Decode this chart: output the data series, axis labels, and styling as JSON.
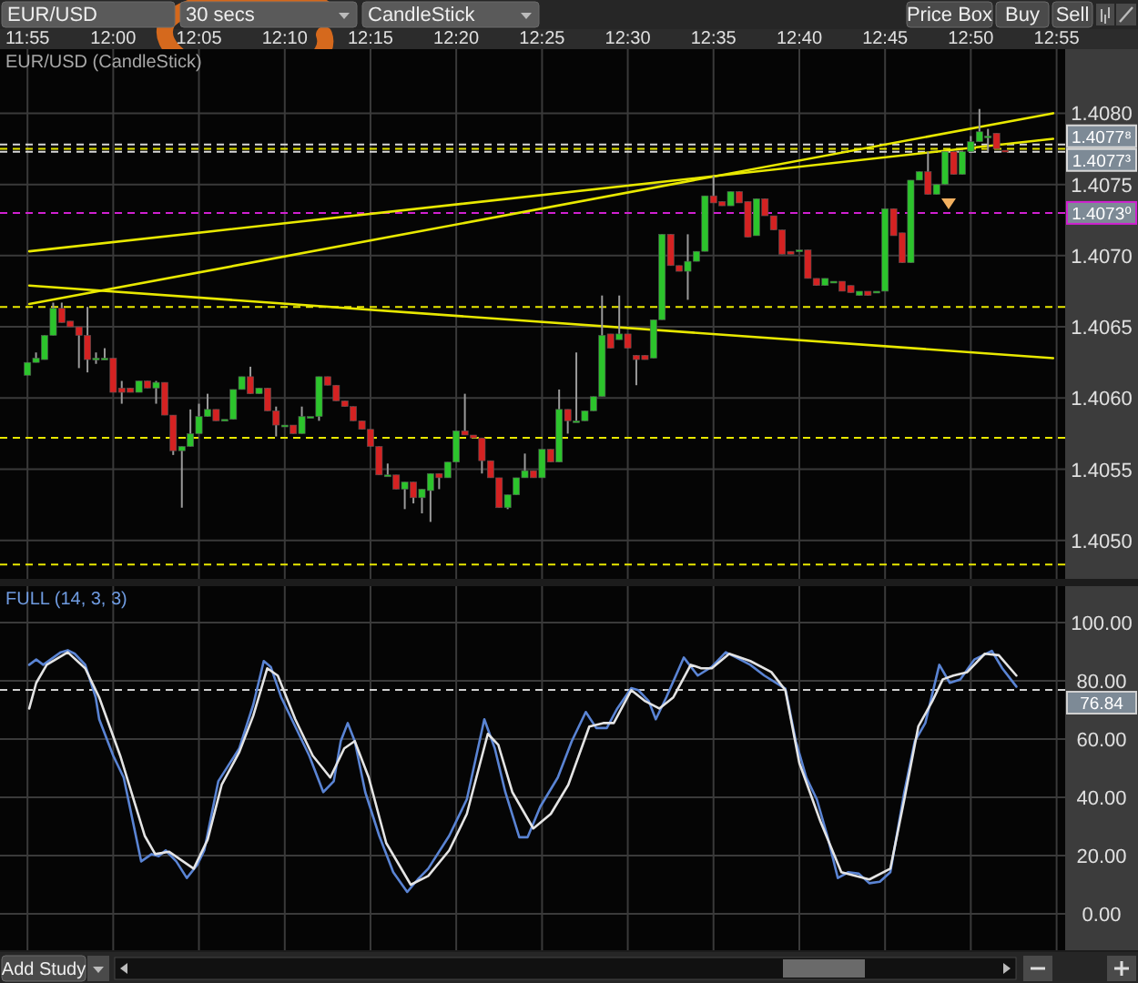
{
  "chart_data": [
    {
      "type": "candlestick",
      "title": "EUR/USD (CandleStick)",
      "x": [
        11.9167,
        11.925,
        11.9333,
        11.9417,
        11.95,
        11.9583,
        11.9667,
        11.975,
        11.9833,
        11.9917,
        12,
        12.0083,
        12.0167,
        12.025,
        12.0333,
        12.0417,
        12.05,
        12.0583,
        12.0667,
        12.075,
        12.0833,
        12.0917,
        12.1,
        12.1083,
        12.1167,
        12.125,
        12.1333,
        12.1417,
        12.15,
        12.1583,
        12.1667,
        12.175,
        12.1833,
        12.1917,
        12.2,
        12.2083,
        12.2167,
        12.225,
        12.2333,
        12.2417,
        12.25,
        12.2583,
        12.2667,
        12.275,
        12.2833,
        12.2917,
        12.3,
        12.3083,
        12.3167,
        12.325,
        12.3333,
        12.3417,
        12.35,
        12.3583,
        12.3667,
        12.375,
        12.3833,
        12.3917,
        12.4,
        12.4083,
        12.4167,
        12.425,
        12.4333,
        12.4417,
        12.45,
        12.4583,
        12.4667,
        12.475,
        12.4833,
        12.4917,
        12.5,
        12.5083,
        12.5167,
        12.525,
        12.5333,
        12.5417,
        12.55,
        12.5583,
        12.5667,
        12.575,
        12.5833,
        12.5917,
        12.6,
        12.6083,
        12.6167,
        12.625,
        12.6333,
        12.6417,
        12.65,
        12.6583,
        12.6667,
        12.675,
        12.6833,
        12.6917,
        12.7,
        12.7083,
        12.7167,
        12.725,
        12.7333,
        12.7417,
        12.75,
        12.7583,
        12.7667,
        12.775,
        12.7833,
        12.7917,
        12.8,
        12.8083,
        12.8167,
        12.825,
        12.8333,
        12.8417,
        12.85,
        12.8583,
        12.8667
      ],
      "ohlc": [
        [
          1.40616,
          1.40625,
          1.40616,
          1.40625
        ],
        [
          1.40625,
          1.40632,
          1.40625,
          1.40628
        ],
        [
          1.40627,
          1.40644,
          1.40627,
          1.40644
        ],
        [
          1.40644,
          1.40667,
          1.40644,
          1.40663
        ],
        [
          1.40663,
          1.40667,
          1.40653,
          1.40653
        ],
        [
          1.40654,
          1.40654,
          1.4065,
          1.4065
        ],
        [
          1.4065,
          1.4065,
          1.40621,
          1.40644
        ],
        [
          1.40644,
          1.40664,
          1.40618,
          1.40627
        ],
        [
          1.40628,
          1.40632,
          1.40624,
          1.40628
        ],
        [
          1.40628,
          1.40635,
          1.40628,
          1.40628
        ],
        [
          1.40628,
          1.40628,
          1.40604,
          1.40604
        ],
        [
          1.40607,
          1.40612,
          1.40596,
          1.40604
        ],
        [
          1.40607,
          1.40607,
          1.40604,
          1.40604
        ],
        [
          1.40604,
          1.40612,
          1.40604,
          1.40612
        ],
        [
          1.40612,
          1.40612,
          1.40607,
          1.40607
        ],
        [
          1.40607,
          1.40612,
          1.40596,
          1.40611
        ],
        [
          1.40611,
          1.40611,
          1.40588,
          1.40588
        ],
        [
          1.40588,
          1.40588,
          1.4056,
          1.40563
        ],
        [
          1.40563,
          1.40566,
          1.40523,
          1.40566
        ],
        [
          1.40566,
          1.40592,
          1.40566,
          1.40575
        ],
        [
          1.40575,
          1.40596,
          1.40575,
          1.40587
        ],
        [
          1.40587,
          1.40603,
          1.40587,
          1.40592
        ],
        [
          1.40592,
          1.40592,
          1.40584,
          1.40584
        ],
        [
          1.40585,
          1.40585,
          1.40585,
          1.40585
        ],
        [
          1.40585,
          1.40606,
          1.40585,
          1.40606
        ],
        [
          1.40606,
          1.40615,
          1.40606,
          1.40615
        ],
        [
          1.40615,
          1.40622,
          1.40603,
          1.40603
        ],
        [
          1.40603,
          1.40607,
          1.40603,
          1.40607
        ],
        [
          1.40607,
          1.40607,
          1.40591,
          1.40591
        ],
        [
          1.40591,
          1.40594,
          1.40573,
          1.40581
        ],
        [
          1.40581,
          1.40581,
          1.40581,
          1.40581
        ],
        [
          1.40581,
          1.40581,
          1.40575,
          1.40575
        ],
        [
          1.40575,
          1.40594,
          1.40575,
          1.40587
        ],
        [
          1.40587,
          1.40587,
          1.40587,
          1.40587
        ],
        [
          1.40587,
          1.40615,
          1.40584,
          1.40615
        ],
        [
          1.40615,
          1.40615,
          1.40609,
          1.40609
        ],
        [
          1.40609,
          1.40609,
          1.40598,
          1.40598
        ],
        [
          1.40598,
          1.40598,
          1.40594,
          1.40594
        ],
        [
          1.40594,
          1.40594,
          1.40584,
          1.40584
        ],
        [
          1.40584,
          1.40584,
          1.40578,
          1.40578
        ],
        [
          1.40578,
          1.40578,
          1.40566,
          1.40566
        ],
        [
          1.40566,
          1.40566,
          1.40546,
          1.40546
        ],
        [
          1.40546,
          1.40554,
          1.40546,
          1.40546
        ],
        [
          1.40546,
          1.40546,
          1.40536,
          1.40536
        ],
        [
          1.40536,
          1.40541,
          1.40522,
          1.40541
        ],
        [
          1.40541,
          1.40541,
          1.40526,
          1.4053
        ],
        [
          1.4053,
          1.40536,
          1.40519,
          1.40536
        ],
        [
          1.40535,
          1.40547,
          1.40513,
          1.40547
        ],
        [
          1.40547,
          1.40547,
          1.40536,
          1.40544
        ],
        [
          1.40544,
          1.40555,
          1.40544,
          1.40555
        ],
        [
          1.40555,
          1.40577,
          1.40555,
          1.40577
        ],
        [
          1.40577,
          1.40603,
          1.40574,
          1.40574
        ],
        [
          1.40574,
          1.40574,
          1.40572,
          1.40572
        ],
        [
          1.40572,
          1.40572,
          1.40547,
          1.40556
        ],
        [
          1.40556,
          1.40556,
          1.40544,
          1.40544
        ],
        [
          1.40544,
          1.40544,
          1.40523,
          1.40523
        ],
        [
          1.40523,
          1.40532,
          1.40522,
          1.40532
        ],
        [
          1.40532,
          1.40544,
          1.40532,
          1.40544
        ],
        [
          1.40544,
          1.40561,
          1.40544,
          1.40549
        ],
        [
          1.40549,
          1.40549,
          1.40544,
          1.40544
        ],
        [
          1.40544,
          1.40564,
          1.40544,
          1.40564
        ],
        [
          1.40564,
          1.40564,
          1.40555,
          1.40555
        ],
        [
          1.40555,
          1.40606,
          1.40555,
          1.40592
        ],
        [
          1.40592,
          1.40592,
          1.40575,
          1.40584
        ],
        [
          1.40584,
          1.40632,
          1.40584,
          1.40584
        ],
        [
          1.40584,
          1.40591,
          1.40584,
          1.40591
        ],
        [
          1.40591,
          1.40601,
          1.40591,
          1.40601
        ],
        [
          1.40601,
          1.40672,
          1.40601,
          1.40644
        ],
        [
          1.40645,
          1.40645,
          1.40635,
          1.40635
        ],
        [
          1.40641,
          1.40672,
          1.40641,
          1.40645
        ],
        [
          1.40645,
          1.40645,
          1.40635,
          1.40635
        ],
        [
          1.4063,
          1.4063,
          1.40609,
          1.40627
        ],
        [
          1.4063,
          1.4063,
          1.40627,
          1.40627
        ],
        [
          1.40628,
          1.40655,
          1.40628,
          1.40655
        ],
        [
          1.40655,
          1.40715,
          1.40655,
          1.40715
        ],
        [
          1.40715,
          1.40715,
          1.40693,
          1.40693
        ],
        [
          1.40693,
          1.40693,
          1.40689,
          1.40689
        ],
        [
          1.40689,
          1.40715,
          1.40669,
          1.40696
        ],
        [
          1.40696,
          1.40703,
          1.40696,
          1.40703
        ],
        [
          1.40703,
          1.40742,
          1.40703,
          1.40742
        ],
        [
          1.40742,
          1.40756,
          1.40737,
          1.40737
        ],
        [
          1.40738,
          1.40738,
          1.40735,
          1.40735
        ],
        [
          1.40735,
          1.40745,
          1.40735,
          1.40745
        ],
        [
          1.40745,
          1.40745,
          1.40737,
          1.40737
        ],
        [
          1.40738,
          1.40738,
          1.40713,
          1.40713
        ],
        [
          1.40714,
          1.4074,
          1.40714,
          1.4074
        ],
        [
          1.4074,
          1.4074,
          1.40728,
          1.40728
        ],
        [
          1.40728,
          1.40728,
          1.40718,
          1.40718
        ],
        [
          1.40718,
          1.40718,
          1.40701,
          1.40701
        ],
        [
          1.40703,
          1.40703,
          1.40701,
          1.40701
        ],
        [
          1.40704,
          1.40704,
          1.40704,
          1.40704
        ],
        [
          1.40704,
          1.40704,
          1.40684,
          1.40684
        ],
        [
          1.40684,
          1.40684,
          1.40679,
          1.40679
        ],
        [
          1.40679,
          1.40684,
          1.40679,
          1.40684
        ],
        [
          1.40682,
          1.40682,
          1.40682,
          1.40682
        ],
        [
          1.40682,
          1.40682,
          1.40675,
          1.40675
        ],
        [
          1.40679,
          1.40679,
          1.40674,
          1.40674
        ],
        [
          1.40672,
          1.40675,
          1.40672,
          1.40675
        ],
        [
          1.40675,
          1.40675,
          1.40672,
          1.40672
        ],
        [
          1.40675,
          1.40675,
          1.40675,
          1.40675
        ],
        [
          1.40675,
          1.40733,
          1.40675,
          1.40733
        ],
        [
          1.40733,
          1.40733,
          1.40714,
          1.40714
        ],
        [
          1.40716,
          1.40716,
          1.40695,
          1.40695
        ],
        [
          1.40695,
          1.40753,
          1.40695,
          1.40753
        ],
        [
          1.40753,
          1.40759,
          1.40753,
          1.40759
        ],
        [
          1.40759,
          1.40773,
          1.40743,
          1.40743
        ],
        [
          1.40743,
          1.4075,
          1.40743,
          1.4075
        ],
        [
          1.4075,
          1.40773,
          1.4075,
          1.40773
        ],
        [
          1.40773,
          1.40773,
          1.40757,
          1.40757
        ],
        [
          1.40757,
          1.40773,
          1.40757,
          1.40773
        ],
        [
          1.40773,
          1.40784,
          1.40773,
          1.4078
        ],
        [
          1.4078,
          1.40803,
          1.4078,
          1.40787
        ],
        [
          1.40784,
          1.40789,
          1.40773,
          1.40784
        ],
        [
          1.40786,
          1.40786,
          1.40775,
          1.40775
        ],
        [
          1.40774,
          1.40774,
          1.40773,
          1.40773
        ]
      ],
      "series": [
        {
          "type": "line",
          "color": "#e8e800",
          "x": [
            11.9184,
            12.9133
          ],
          "values": [
            1.40703,
            1.40782
          ]
        },
        {
          "type": "line",
          "color": "#e8e800",
          "x": [
            11.9184,
            12.9133
          ],
          "values": [
            1.40666,
            1.408
          ]
        },
        {
          "type": "line",
          "color": "#e8e800",
          "x": [
            11.9184,
            12.9133
          ],
          "values": [
            1.40679,
            1.40628
          ]
        }
      ],
      "xlim": [
        11.89,
        12.925
      ],
      "xticks": [
        {
          "value": 11.9167,
          "label": "11:55"
        },
        {
          "value": 12,
          "label": "12:00"
        },
        {
          "value": 12.0833,
          "label": "12:05"
        },
        {
          "value": 12.1667,
          "label": "12:10"
        },
        {
          "value": 12.25,
          "label": "12:15"
        },
        {
          "value": 12.3333,
          "label": "12:20"
        },
        {
          "value": 12.4167,
          "label": "12:25"
        },
        {
          "value": 12.5,
          "label": "12:30"
        },
        {
          "value": 12.5833,
          "label": "12:35"
        },
        {
          "value": 12.6667,
          "label": "12:40"
        },
        {
          "value": 12.75,
          "label": "12:45"
        },
        {
          "value": 12.8333,
          "label": "12:50"
        },
        {
          "value": 12.9167,
          "label": "12:55"
        }
      ],
      "ylim": [
        1.40473,
        1.40845
      ],
      "yticks": [
        {
          "value": 1.405,
          "label": "1.4050"
        },
        1.4055,
        {
          "value": 1.406,
          "label": "1.4060"
        },
        1.4065,
        {
          "value": 1.407,
          "label": "1.4070"
        },
        1.4075,
        {
          "value": 1.408,
          "label": "1.4080"
        }
      ],
      "grid": true,
      "ref_lines": [
        {
          "axis": "y",
          "value": 1.40664,
          "color": "#e8e800",
          "line_style": "dashed"
        },
        {
          "axis": "y",
          "value": 1.40572,
          "color": "#e8e800",
          "line_style": "dashed"
        },
        {
          "axis": "y",
          "value": 1.40483,
          "color": "#e8e800",
          "line_style": "dashed"
        },
        {
          "axis": "y",
          "value": 1.40778,
          "label": "1.4077⁸",
          "color": "#d8d8d8",
          "line_style": "dashed"
        },
        {
          "axis": "y",
          "value": 1.40775,
          "color": "#e8e800",
          "line_style": "dashed"
        },
        {
          "axis": "y",
          "value": 1.40773,
          "label": "1.4077³",
          "color": "#d8d8d8",
          "line_style": "dashed"
        },
        {
          "axis": "y",
          "value": 1.4073,
          "label": "1.4073⁰",
          "color": "#d020d0",
          "line_style": "dashed"
        }
      ],
      "annotations": [
        "EUR/USD",
        "30 secs",
        "CandleStick",
        "Price Box",
        "Buy",
        "Sell"
      ]
    },
    {
      "type": "line",
      "title": "FULL (14, 3, 3)",
      "series": [
        {
          "color": "#5a84d4",
          "x": [
            11.9184,
            11.9252,
            11.932,
            11.949,
            11.9558,
            11.9626,
            11.9728,
            11.983,
            11.9864,
            12,
            12.0102,
            12.0272,
            12.0374,
            12.0442,
            12.051,
            12.0613,
            12.0715,
            12.0817,
            12.0885,
            12.1021,
            12.1225,
            12.1361,
            12.1463,
            12.1531,
            12.1633,
            12.1735,
            12.1905,
            12.2041,
            12.2143,
            12.2211,
            12.2279,
            12.2347,
            12.2449,
            12.2585,
            12.2721,
            12.2857,
            12.2959,
            12.3061,
            12.3265,
            12.3436,
            12.3606,
            12.3708,
            12.381,
            12.3946,
            12.4027,
            12.415,
            12.432,
            12.4456,
            12.4592,
            12.4694,
            12.4796,
            12.4898,
            12.5034,
            12.5102,
            12.5204,
            12.5272,
            12.5374,
            12.5544,
            12.568,
            12.5816,
            12.5952,
            12.6054,
            12.619,
            12.6327,
            12.6531,
            12.6633,
            12.6735,
            12.6837,
            12.6939,
            12.7041,
            12.7143,
            12.7245,
            12.7347,
            12.7449,
            12.7551,
            12.7687,
            12.7789,
            12.7891,
            12.8027,
            12.8129,
            12.8231,
            12.8367,
            12.8537,
            12.8639,
            12.8776
          ],
          "values": [
            85.5,
            87.3,
            85.5,
            89.8,
            90.5,
            89.3,
            85.5,
            74.3,
            66.8,
            54.3,
            46.8,
            18,
            20.5,
            19.8,
            21.8,
            18,
            12.3,
            16.8,
            21.8,
            45.5,
            56.8,
            71.8,
            86.8,
            84.8,
            74.3,
            66.8,
            54.3,
            41.8,
            45.5,
            59.3,
            65.5,
            59.3,
            41.8,
            26.8,
            14.3,
            7.5,
            11.8,
            15.5,
            26.8,
            39.3,
            66.8,
            56.8,
            41.8,
            26.3,
            26.3,
            36.8,
            46.8,
            59.3,
            69.3,
            63.8,
            63.8,
            70.5,
            77.5,
            76.8,
            73,
            66.8,
            74.3,
            88,
            81.8,
            84.8,
            89.8,
            88,
            85.5,
            81.8,
            77.3,
            59.3,
            46.8,
            39.3,
            26.8,
            12.3,
            14.3,
            13.8,
            10.5,
            11,
            14.3,
            41.8,
            59.3,
            65.5,
            85.5,
            79.3,
            80.5,
            87.3,
            90.3,
            84.3,
            78
          ]
        },
        {
          "color": "#e4e4e4",
          "x": [
            11.9184,
            11.9252,
            11.9354,
            11.9558,
            11.9728,
            11.9864,
            12.0068,
            12.0306,
            12.0408,
            12.0544,
            12.0782,
            12.0918,
            12.1054,
            12.1225,
            12.1361,
            12.1497,
            12.1599,
            12.1769,
            12.1939,
            12.2109,
            12.2245,
            12.2347,
            12.2483,
            12.2653,
            12.2891,
            12.3061,
            12.3265,
            12.3436,
            12.364,
            12.3742,
            12.3878,
            12.4082,
            12.4252,
            12.4422,
            12.4626,
            12.4762,
            12.4864,
            12.5034,
            12.517,
            12.5306,
            12.5442,
            12.5612,
            12.5714,
            12.5816,
            12.5986,
            12.619,
            12.6395,
            12.6531,
            12.6667,
            12.6871,
            12.7075,
            12.7347,
            12.7551,
            12.7687,
            12.7823,
            12.7959,
            12.8061,
            12.8163,
            12.8299,
            12.8469,
            12.8605,
            12.8776
          ],
          "values": [
            70.5,
            79.3,
            85.5,
            89.8,
            84.3,
            74.3,
            54.3,
            26.8,
            20.5,
            21.3,
            15.5,
            25.5,
            44.3,
            55.5,
            68,
            84.3,
            81.8,
            66.8,
            54.3,
            46.8,
            56.8,
            59.3,
            46.8,
            24.3,
            10,
            13,
            21.8,
            34.3,
            61.8,
            58,
            41.8,
            29.3,
            34.3,
            44.3,
            64.3,
            65.5,
            65.5,
            76.8,
            73,
            70.5,
            74.3,
            85.5,
            84.3,
            84.3,
            89.3,
            86.8,
            83,
            76.8,
            51.8,
            31.8,
            14.3,
            11.8,
            15.5,
            39.3,
            64.3,
            73,
            80.5,
            81.8,
            83,
            89.3,
            88.8,
            81.8
          ]
        }
      ],
      "xlim": [
        11.89,
        12.925
      ],
      "xticks": [
        {
          "value": 11.9167,
          "label": null
        },
        {
          "value": 12,
          "label": null
        },
        {
          "value": 12.0833,
          "label": null
        },
        {
          "value": 12.1667,
          "label": null
        },
        {
          "value": 12.25,
          "label": null
        },
        {
          "value": 12.3333,
          "label": null
        },
        {
          "value": 12.4167,
          "label": null
        },
        {
          "value": 12.5,
          "label": null
        },
        {
          "value": 12.5833,
          "label": null
        },
        {
          "value": 12.6667,
          "label": null
        },
        {
          "value": 12.75,
          "label": null
        },
        {
          "value": 12.8333,
          "label": null
        },
        {
          "value": 12.9167,
          "label": null
        }
      ],
      "ylim": [
        -12.5,
        112.5
      ],
      "yticks": [
        {
          "value": 0,
          "label": "0.00"
        },
        {
          "value": 20,
          "label": "20.00"
        },
        {
          "value": 40,
          "label": "40.00"
        },
        {
          "value": 60,
          "label": "60.00"
        },
        {
          "value": 80,
          "label": "80.00"
        },
        {
          "value": 100,
          "label": "100.00"
        }
      ],
      "grid": true,
      "tick_labels": "y",
      "ref_lines": [
        {
          "axis": "y",
          "value": 76.84,
          "label": "76.84",
          "color": "#d0d0d0",
          "line_style": "dashed"
        }
      ],
      "annotations": [
        "Add Study"
      ]
    }
  ]
}
